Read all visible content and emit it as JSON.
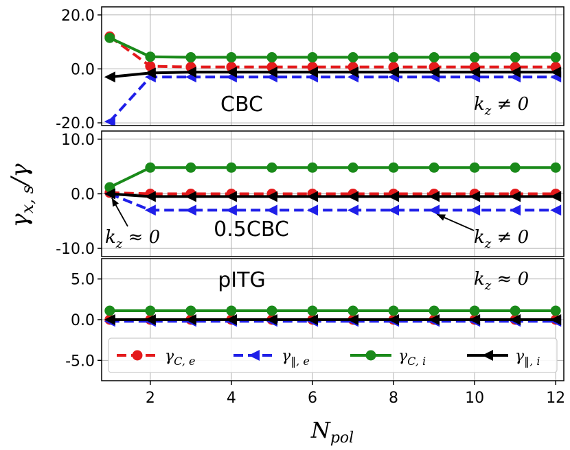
{
  "chart_data": {
    "type": "line",
    "xlabel": "N_pol",
    "ylabel": "γx,s/γ",
    "x_ticks": [
      2,
      4,
      6,
      8,
      10,
      12
    ],
    "xlim": [
      0.8,
      12.2
    ],
    "x": [
      1,
      2,
      3,
      4,
      5,
      6,
      7,
      8,
      9,
      10,
      11,
      12
    ],
    "legend": {
      "placement": "bottom",
      "entries": [
        {
          "key": "gce",
          "label": "γC,e",
          "color": "#e41a1c"
        },
        {
          "key": "gpe",
          "label": "γ‖,e",
          "color": "#1f1fe8"
        },
        {
          "key": "gci",
          "label": "γC,i",
          "color": "#1a8a1a"
        },
        {
          "key": "gpi",
          "label": "γ‖,i",
          "color": "#000000"
        }
      ]
    },
    "panels": [
      {
        "label": "CBC",
        "annotation": "k_z ≠ 0",
        "ylim": [
          -21,
          23
        ],
        "y_ticks": [
          {
            "v": 20,
            "t": "20.0"
          },
          {
            "v": 0,
            "t": "0.0"
          },
          {
            "v": -20,
            "t": "-20.0"
          }
        ],
        "series": [
          {
            "key": "gce",
            "values": [
              12,
              1,
              0.7,
              0.7,
              0.7,
              0.7,
              0.7,
              0.7,
              0.7,
              0.7,
              0.7,
              0.7
            ]
          },
          {
            "key": "gpe",
            "values": [
              -19.5,
              -3,
              -3,
              -3,
              -3,
              -3,
              -3,
              -3,
              -3,
              -3,
              -3,
              -3
            ]
          },
          {
            "key": "gci",
            "values": [
              11.5,
              4.5,
              4.3,
              4.3,
              4.3,
              4.3,
              4.3,
              4.3,
              4.3,
              4.3,
              4.3,
              4.3
            ]
          },
          {
            "key": "gpi",
            "values": [
              -3,
              -1.5,
              -1.2,
              -1.2,
              -1.2,
              -1.2,
              -1.2,
              -1.2,
              -1.2,
              -1.2,
              -1.2,
              -1.2
            ]
          }
        ]
      },
      {
        "label": "0.5CBC",
        "annotation_left": "k_z ≈ 0",
        "annotation_right": "k_z ≠ 0",
        "ylim": [
          -11.5,
          11.5
        ],
        "y_ticks": [
          {
            "v": 10,
            "t": "10.0"
          },
          {
            "v": 0,
            "t": "0.0"
          },
          {
            "v": -10,
            "t": "-10.0"
          }
        ],
        "series": [
          {
            "key": "gce",
            "values": [
              0.2,
              0,
              0,
              0,
              0,
              0,
              0,
              0,
              0,
              0,
              0,
              0
            ]
          },
          {
            "key": "gpe",
            "values": [
              0,
              -3,
              -3,
              -3,
              -3,
              -3,
              -3,
              -3,
              -3,
              -3,
              -3,
              -3
            ]
          },
          {
            "key": "gci",
            "values": [
              1.2,
              4.8,
              4.8,
              4.8,
              4.8,
              4.8,
              4.8,
              4.8,
              4.8,
              4.8,
              4.8,
              4.8
            ]
          },
          {
            "key": "gpi",
            "values": [
              0,
              -0.5,
              -0.5,
              -0.5,
              -0.5,
              -0.5,
              -0.5,
              -0.5,
              -0.5,
              -0.5,
              -0.5,
              -0.5
            ]
          }
        ]
      },
      {
        "label": "pITG",
        "annotation": "k_z ≈ 0",
        "ylim": [
          -7.5,
          7.5
        ],
        "y_ticks": [
          {
            "v": 5,
            "t": "5.0"
          },
          {
            "v": 0,
            "t": "0.0"
          },
          {
            "v": -5,
            "t": "-5.0"
          }
        ],
        "series": [
          {
            "key": "gce",
            "values": [
              0,
              0,
              0,
              0,
              0,
              0,
              0,
              0,
              0,
              0,
              0,
              0
            ]
          },
          {
            "key": "gpe",
            "values": [
              -0.2,
              -0.2,
              -0.2,
              -0.2,
              -0.2,
              -0.2,
              -0.2,
              -0.2,
              -0.2,
              -0.2,
              -0.2,
              -0.2
            ]
          },
          {
            "key": "gci",
            "values": [
              1.1,
              1.1,
              1.1,
              1.1,
              1.1,
              1.1,
              1.1,
              1.1,
              1.1,
              1.1,
              1.1,
              1.1
            ]
          },
          {
            "key": "gpi",
            "values": [
              0,
              0,
              0,
              0,
              0,
              0,
              0,
              0,
              0,
              0,
              0,
              0
            ]
          }
        ]
      }
    ]
  }
}
